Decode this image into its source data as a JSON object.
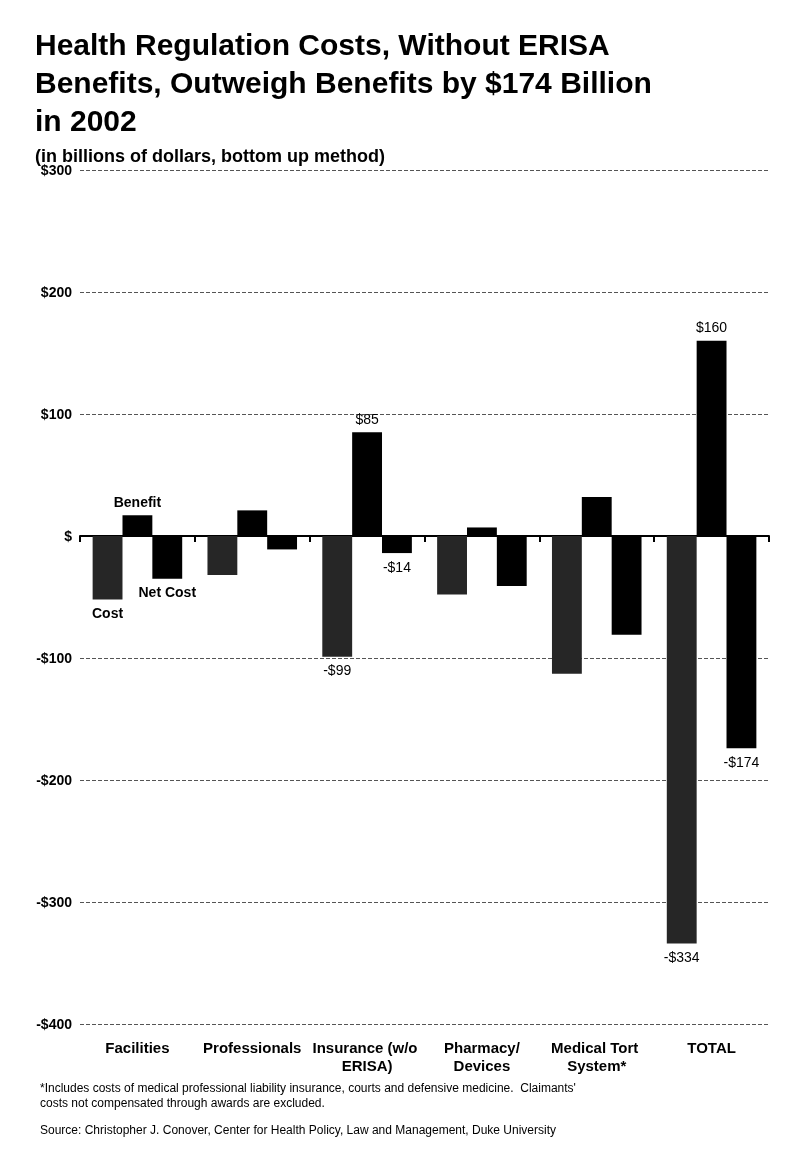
{
  "chart_data": {
    "type": "bar",
    "title": "Health Regulation Costs, Without ERISA Benefits, Outweigh Benefits by $174 Billion in 2002",
    "subtitle": "(in billions of dollars, bottom up method)",
    "categories": [
      "Facilities",
      "Professionals",
      "Insurance (w/o ERISA)",
      "Pharmacy/Devices",
      "Medical Tort System*",
      "TOTAL"
    ],
    "series": [
      {
        "name": "Cost",
        "color": "#262626",
        "values": [
          -52,
          -32,
          -99,
          -48,
          -113,
          -334
        ],
        "value_labels": [
          null,
          null,
          "-$99",
          null,
          null,
          "-$334"
        ]
      },
      {
        "name": "Benefit",
        "color": "#000000",
        "values": [
          17,
          21,
          85,
          7,
          32,
          160
        ],
        "value_labels": [
          null,
          null,
          "$85",
          null,
          null,
          "$160"
        ]
      },
      {
        "name": "Net Cost",
        "color": "#000000",
        "values": [
          -35,
          -11,
          -14,
          -41,
          -81,
          -174
        ],
        "value_labels": [
          null,
          null,
          "-$14",
          null,
          null,
          "-$174"
        ]
      }
    ],
    "ylim": [
      -400,
      300
    ],
    "yticks": [
      {
        "value": 300,
        "label": "$300"
      },
      {
        "value": 200,
        "label": "$200"
      },
      {
        "value": 100,
        "label": "$100"
      },
      {
        "value": 0,
        "label": "$"
      },
      {
        "value": -100,
        "label": "-$100"
      },
      {
        "value": -200,
        "label": "-$200"
      },
      {
        "value": -300,
        "label": "-$300"
      },
      {
        "value": -400,
        "label": "-$400"
      }
    ],
    "grid": "y",
    "legend": false,
    "annotations": [
      "*Includes costs of medical professional liability insurance, courts and defensive medicine.  Claimants' costs not compensated through awards are excluded.",
      "Source: Christopher J. Conover, Center for Health Policy, Law and Management, Duke University"
    ]
  }
}
